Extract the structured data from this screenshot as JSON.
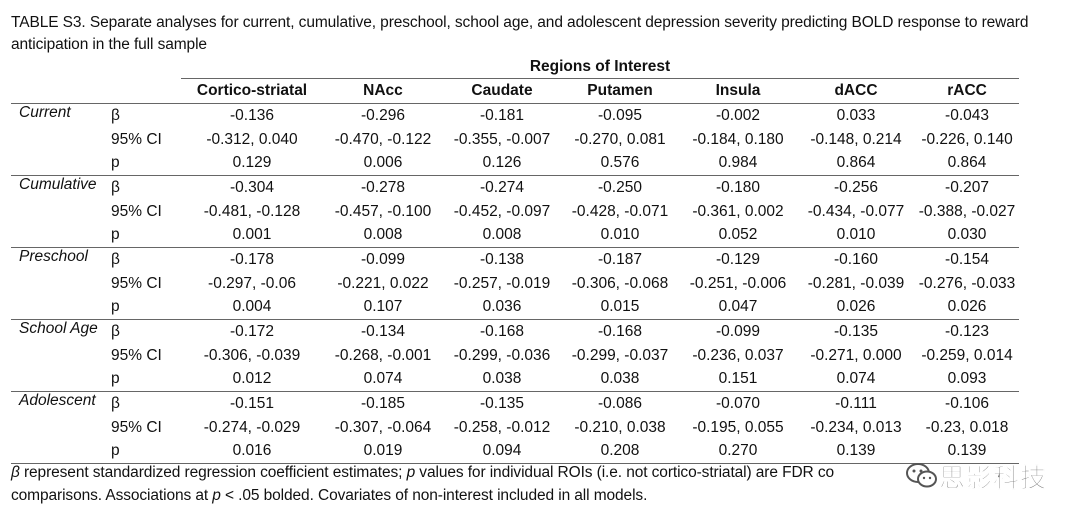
{
  "caption": "TABLE S3. Separate analyses for current, cumulative, preschool, school age, and adolescent depression severity predicting BOLD response to reward anticipation in the full sample",
  "header": {
    "group": "Regions of Interest",
    "columns": [
      "Cortico-striatal",
      "NAcc",
      "Caudate",
      "Putamen",
      "Insula",
      "dACC",
      "rACC"
    ]
  },
  "rows": [
    {
      "group": "Current",
      "stats": [
        {
          "label": "β",
          "values": [
            [
              "-0.136",
              false
            ],
            [
              "-0.296",
              true
            ],
            [
              "-0.181",
              false
            ],
            [
              "-0.095",
              false
            ],
            [
              "-0.002",
              false
            ],
            [
              "0.033",
              false
            ],
            [
              "-0.043",
              false
            ]
          ]
        },
        {
          "label": "95% CI",
          "values": [
            [
              "-0.312, 0.040",
              false
            ],
            [
              "-0.470, -0.122",
              true
            ],
            [
              "-0.355, -0.007",
              false
            ],
            [
              "-0.270, 0.081",
              false
            ],
            [
              "-0.184, 0.180",
              false
            ],
            [
              "-0.148, 0.214",
              false
            ],
            [
              "-0.226, 0.140",
              false
            ]
          ]
        },
        {
          "label": "p",
          "values": [
            [
              "0.129",
              false
            ],
            [
              "0.006",
              true
            ],
            [
              "0.126",
              false
            ],
            [
              "0.576",
              false
            ],
            [
              "0.984",
              false
            ],
            [
              "0.864",
              false
            ],
            [
              "0.864",
              false
            ]
          ]
        }
      ]
    },
    {
      "group": "Cumulative",
      "stats": [
        {
          "label": "β",
          "values": [
            [
              "-0.304",
              true
            ],
            [
              "-0.278",
              true
            ],
            [
              "-0.274",
              true
            ],
            [
              "-0.250",
              true
            ],
            [
              "-0.180",
              false
            ],
            [
              "-0.256",
              true
            ],
            [
              "-0.207",
              true
            ]
          ]
        },
        {
          "label": "95% CI",
          "values": [
            [
              "-0.481, -0.128",
              true
            ],
            [
              "-0.457, -0.100",
              true
            ],
            [
              "-0.452, -0.097",
              true
            ],
            [
              "-0.428, -0.071",
              true
            ],
            [
              "-0.361, 0.002",
              false
            ],
            [
              "-0.434, -0.077",
              true
            ],
            [
              "-0.388, -0.027",
              true
            ]
          ]
        },
        {
          "label": "p",
          "values": [
            [
              "0.001",
              true
            ],
            [
              "0.008",
              true
            ],
            [
              "0.008",
              true
            ],
            [
              "0.010",
              true
            ],
            [
              "0.052",
              false
            ],
            [
              "0.010",
              true
            ],
            [
              "0.030",
              true
            ]
          ]
        }
      ]
    },
    {
      "group": "Preschool",
      "stats": [
        {
          "label": "β",
          "values": [
            [
              "-0.178",
              true
            ],
            [
              "-0.099",
              false
            ],
            [
              "-0.138",
              true
            ],
            [
              "-0.187",
              true
            ],
            [
              "-0.129",
              true
            ],
            [
              "-0.160",
              true
            ],
            [
              "-0.154",
              true
            ]
          ]
        },
        {
          "label": "95% CI",
          "values": [
            [
              "-0.297, -0.06",
              true
            ],
            [
              "-0.221, 0.022",
              false
            ],
            [
              "-0.257, -0.019",
              true
            ],
            [
              "-0.306, -0.068",
              true
            ],
            [
              "-0.251, -0.006",
              true
            ],
            [
              "-0.281, -0.039",
              true
            ],
            [
              "-0.276, -0.033",
              true
            ]
          ]
        },
        {
          "label": "p",
          "values": [
            [
              "0.004",
              true
            ],
            [
              "0.107",
              false
            ],
            [
              "0.036",
              true
            ],
            [
              "0.015",
              true
            ],
            [
              "0.047",
              true
            ],
            [
              "0.026",
              true
            ],
            [
              "0.026",
              true
            ]
          ]
        }
      ]
    },
    {
      "group": "School Age",
      "stats": [
        {
          "label": "β",
          "values": [
            [
              "-0.172",
              true
            ],
            [
              "-0.134",
              false
            ],
            [
              "-0.168",
              true
            ],
            [
              "-0.168",
              true
            ],
            [
              "-0.099",
              false
            ],
            [
              "-0.135",
              false
            ],
            [
              "-0.123",
              false
            ]
          ]
        },
        {
          "label": "95% CI",
          "values": [
            [
              "-0.306, -0.039",
              true
            ],
            [
              "-0.268, -0.001",
              false
            ],
            [
              "-0.299, -0.036",
              true
            ],
            [
              "-0.299, -0.037",
              true
            ],
            [
              "-0.236, 0.037",
              false
            ],
            [
              "-0.271, 0.000",
              false
            ],
            [
              "-0.259, 0.014",
              false
            ]
          ]
        },
        {
          "label": "p",
          "values": [
            [
              "0.012",
              true
            ],
            [
              "0.074",
              false
            ],
            [
              "0.038",
              true
            ],
            [
              "0.038",
              true
            ],
            [
              "0.151",
              false
            ],
            [
              "0.074",
              false
            ],
            [
              "0.093",
              false
            ]
          ]
        }
      ]
    },
    {
      "group": "Adolescent",
      "stats": [
        {
          "label": "β",
          "values": [
            [
              "-0.151",
              true
            ],
            [
              "-0.185",
              true
            ],
            [
              "-0.135",
              false
            ],
            [
              "-0.086",
              false
            ],
            [
              "-0.070",
              false
            ],
            [
              "-0.111",
              false
            ],
            [
              "-0.106",
              false
            ]
          ]
        },
        {
          "label": "95% CI",
          "values": [
            [
              "-0.274, -0.029",
              true
            ],
            [
              "-0.307, -0.064",
              true
            ],
            [
              "-0.258, -0.012",
              false
            ],
            [
              "-0.210, 0.038",
              false
            ],
            [
              "-0.195, 0.055",
              false
            ],
            [
              "-0.234, 0.013",
              false
            ],
            [
              "-0.23, 0.018",
              false
            ]
          ]
        },
        {
          "label": "p",
          "values": [
            [
              "0.016",
              true
            ],
            [
              "0.019",
              true
            ],
            [
              "0.094",
              false
            ],
            [
              "0.208",
              false
            ],
            [
              "0.270",
              false
            ],
            [
              "0.139",
              false
            ],
            [
              "0.139",
              false
            ]
          ]
        }
      ]
    }
  ],
  "footnote": {
    "beta_symbol": "β",
    "line1_rest": " represent standardized regression coefficient estimates; ",
    "p_symbol": "p",
    "line1_end": " values for individual ROIs (i.e. not cortico-striatal) are FDR co",
    "line2_start": "comparisons. Associations at ",
    "p_symbol_2": "p",
    "line2_end": " < .05 bolded. Covariates of non-interest included in all models."
  },
  "watermark": {
    "text": "思影科技",
    "icon": "wechat-icon"
  }
}
